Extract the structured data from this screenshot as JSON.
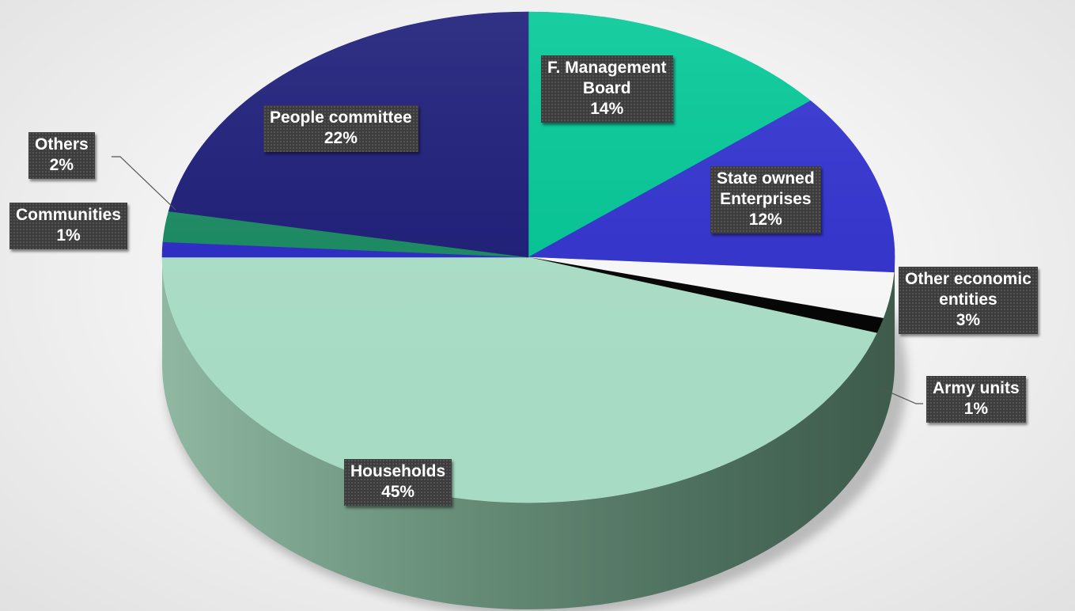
{
  "chart_data": {
    "type": "pie",
    "style": "3d",
    "title": "",
    "legend": "none",
    "slices": [
      {
        "label": "F. Management Board",
        "value": 14,
        "label_lines": [
          "F. Management",
          "Board",
          "14%"
        ],
        "color": "#00c896"
      },
      {
        "label": "State owned Enterprises",
        "value": 12,
        "label_lines": [
          "State owned",
          "Enterprises",
          "12%"
        ],
        "color": "#3030d0"
      },
      {
        "label": "Other economic entities",
        "value": 3,
        "label_lines": [
          "Other economic",
          "entities",
          "3%"
        ],
        "color": "#ffffff"
      },
      {
        "label": "Army units",
        "value": 1,
        "label_lines": [
          "Army units",
          "1%"
        ],
        "color": "#000000"
      },
      {
        "label": "Households",
        "value": 45,
        "label_lines": [
          "Households",
          "45%"
        ],
        "color": "#aee4cb"
      },
      {
        "label": "Communities",
        "value": 1,
        "label_lines": [
          "Communities",
          "1%"
        ],
        "color": "#2828c8"
      },
      {
        "label": "Others",
        "value": 2,
        "label_lines": [
          "Others",
          "2%"
        ],
        "color": "#168a60"
      },
      {
        "label": "People committee",
        "value": 22,
        "label_lines": [
          "People committee",
          "22%"
        ],
        "color": "#1a1a78"
      }
    ]
  }
}
